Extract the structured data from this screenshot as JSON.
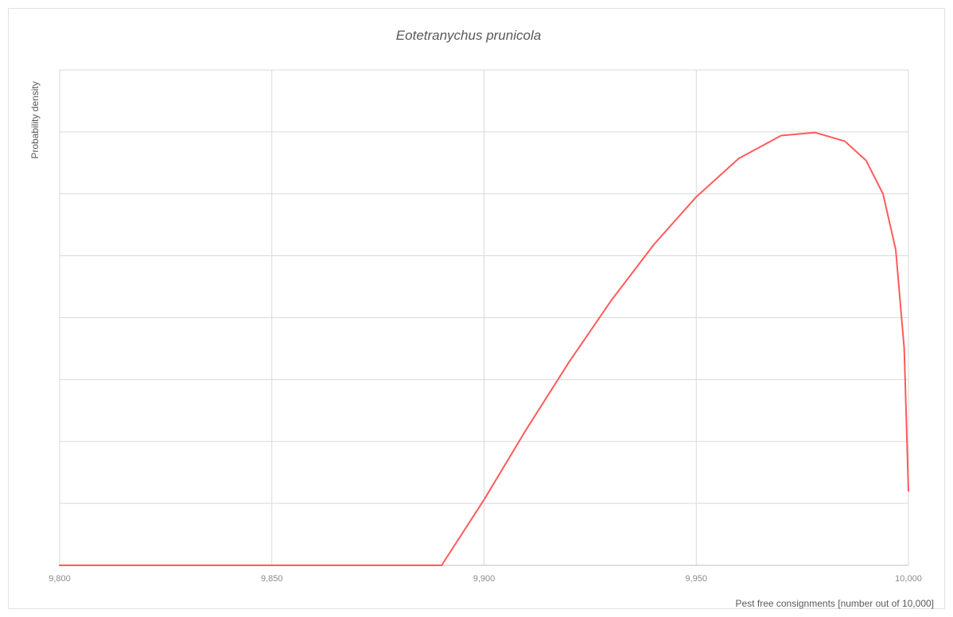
{
  "chart_data": {
    "type": "line",
    "title": "Eotetranychus prunicola",
    "xlabel": "Pest free consignments [number out of 10,000]",
    "ylabel": "Probability density",
    "xlim": [
      9800,
      10000
    ],
    "ylim": [
      0,
      8
    ],
    "x_ticks": [
      "9,800",
      "9,850",
      "9,900",
      "9,950",
      "10,000"
    ],
    "x_tick_values": [
      9800,
      9850,
      9900,
      9950,
      10000
    ],
    "grid": true,
    "legend": "none",
    "series": [
      {
        "color": "#ff5a5a",
        "points": [
          [
            9800,
            0
          ],
          [
            9890,
            0
          ],
          [
            9900,
            1.06
          ],
          [
            9910,
            2.2
          ],
          [
            9920,
            3.28
          ],
          [
            9930,
            4.28
          ],
          [
            9940,
            5.18
          ],
          [
            9950,
            5.95
          ],
          [
            9960,
            6.57
          ],
          [
            9970,
            6.94
          ],
          [
            9978,
            6.99
          ],
          [
            9985,
            6.85
          ],
          [
            9990,
            6.54
          ],
          [
            9994,
            6.0
          ],
          [
            9997,
            5.1
          ],
          [
            9999,
            3.5
          ],
          [
            10000,
            1.2
          ]
        ]
      }
    ]
  }
}
